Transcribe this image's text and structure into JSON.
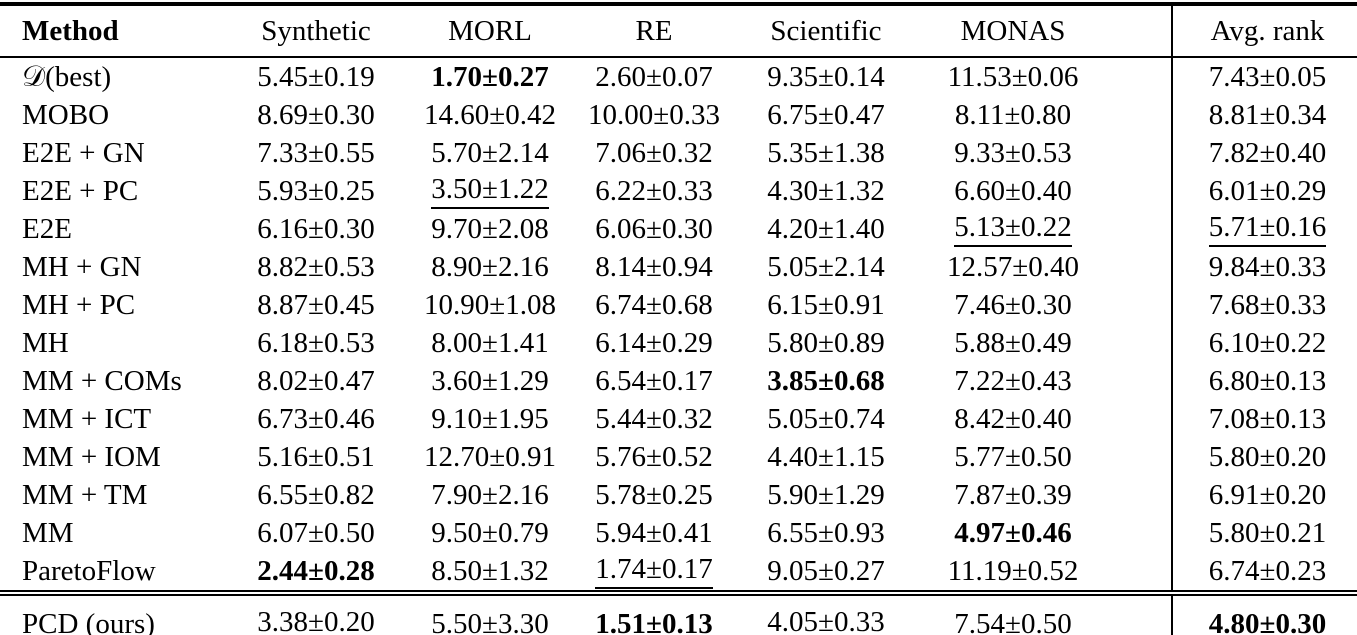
{
  "colors": {
    "background": "#ffffff",
    "text": "#000000",
    "rules": "#000000"
  },
  "table": {
    "columns": [
      "Method",
      "Synthetic",
      "MORL",
      "RE",
      "Scientific",
      "MONAS",
      "Avg. rank"
    ],
    "body_rows": [
      {
        "label": "𝒟(best)",
        "values": [
          {
            "t": "5.45±0.19"
          },
          {
            "t": "1.70±0.27",
            "s": "b"
          },
          {
            "t": "2.60±0.07"
          },
          {
            "t": "9.35±0.14"
          },
          {
            "t": "11.53±0.06"
          },
          {
            "t": "7.43±0.05"
          }
        ]
      },
      {
        "label": "MOBO",
        "values": [
          {
            "t": "8.69±0.30"
          },
          {
            "t": "14.60±0.42"
          },
          {
            "t": "10.00±0.33"
          },
          {
            "t": "6.75±0.47"
          },
          {
            "t": "8.11±0.80"
          },
          {
            "t": "8.81±0.34"
          }
        ]
      },
      {
        "label": "E2E + GN",
        "values": [
          {
            "t": "7.33±0.55"
          },
          {
            "t": "5.70±2.14"
          },
          {
            "t": "7.06±0.32"
          },
          {
            "t": "5.35±1.38"
          },
          {
            "t": "9.33±0.53"
          },
          {
            "t": "7.82±0.40"
          }
        ]
      },
      {
        "label": "E2E + PC",
        "values": [
          {
            "t": "5.93±0.25"
          },
          {
            "t": "3.50±1.22",
            "s": "u"
          },
          {
            "t": "6.22±0.33"
          },
          {
            "t": "4.30±1.32"
          },
          {
            "t": "6.60±0.40"
          },
          {
            "t": "6.01±0.29"
          }
        ]
      },
      {
        "label": "E2E",
        "values": [
          {
            "t": "6.16±0.30"
          },
          {
            "t": "9.70±2.08"
          },
          {
            "t": "6.06±0.30"
          },
          {
            "t": "4.20±1.40"
          },
          {
            "t": "5.13±0.22",
            "s": "u"
          },
          {
            "t": "5.71±0.16",
            "s": "u"
          }
        ]
      },
      {
        "label": "MH + GN",
        "values": [
          {
            "t": "8.82±0.53"
          },
          {
            "t": "8.90±2.16"
          },
          {
            "t": "8.14±0.94"
          },
          {
            "t": "5.05±2.14"
          },
          {
            "t": "12.57±0.40"
          },
          {
            "t": "9.84±0.33"
          }
        ]
      },
      {
        "label": "MH + PC",
        "values": [
          {
            "t": "8.87±0.45"
          },
          {
            "t": "10.90±1.08"
          },
          {
            "t": "6.74±0.68"
          },
          {
            "t": "6.15±0.91"
          },
          {
            "t": "7.46±0.30"
          },
          {
            "t": "7.68±0.33"
          }
        ]
      },
      {
        "label": "MH",
        "values": [
          {
            "t": "6.18±0.53"
          },
          {
            "t": "8.00±1.41"
          },
          {
            "t": "6.14±0.29"
          },
          {
            "t": "5.80±0.89"
          },
          {
            "t": "5.88±0.49"
          },
          {
            "t": "6.10±0.22"
          }
        ]
      },
      {
        "label": "MM + COMs",
        "values": [
          {
            "t": "8.02±0.47"
          },
          {
            "t": "3.60±1.29"
          },
          {
            "t": "6.54±0.17"
          },
          {
            "t": "3.85±0.68",
            "s": "b"
          },
          {
            "t": "7.22±0.43"
          },
          {
            "t": "6.80±0.13"
          }
        ]
      },
      {
        "label": "MM + ICT",
        "values": [
          {
            "t": "6.73±0.46"
          },
          {
            "t": "9.10±1.95"
          },
          {
            "t": "5.44±0.32"
          },
          {
            "t": "5.05±0.74"
          },
          {
            "t": "8.42±0.40"
          },
          {
            "t": "7.08±0.13"
          }
        ]
      },
      {
        "label": "MM + IOM",
        "values": [
          {
            "t": "5.16±0.51"
          },
          {
            "t": "12.70±0.91"
          },
          {
            "t": "5.76±0.52"
          },
          {
            "t": "4.40±1.15"
          },
          {
            "t": "5.77±0.50"
          },
          {
            "t": "5.80±0.20"
          }
        ]
      },
      {
        "label": "MM + TM",
        "values": [
          {
            "t": "6.55±0.82"
          },
          {
            "t": "7.90±2.16"
          },
          {
            "t": "5.78±0.25"
          },
          {
            "t": "5.90±1.29"
          },
          {
            "t": "7.87±0.39"
          },
          {
            "t": "6.91±0.20"
          }
        ]
      },
      {
        "label": "MM",
        "values": [
          {
            "t": "6.07±0.50"
          },
          {
            "t": "9.50±0.79"
          },
          {
            "t": "5.94±0.41"
          },
          {
            "t": "6.55±0.93"
          },
          {
            "t": "4.97±0.46",
            "s": "b"
          },
          {
            "t": "5.80±0.21"
          }
        ]
      },
      {
        "label": "ParetoFlow",
        "values": [
          {
            "t": "2.44±0.28",
            "s": "b"
          },
          {
            "t": "8.50±1.32"
          },
          {
            "t": "1.74±0.17",
            "s": "u"
          },
          {
            "t": "9.05±0.27"
          },
          {
            "t": "11.19±0.52"
          },
          {
            "t": "6.74±0.23"
          }
        ]
      }
    ],
    "footer_rows": [
      {
        "label": "PCD (ours)",
        "values": [
          {
            "t": "3.38±0.20",
            "s": "u"
          },
          {
            "t": "5.50±3.30"
          },
          {
            "t": "1.51±0.13",
            "s": "b"
          },
          {
            "t": "4.05±0.33",
            "s": "u"
          },
          {
            "t": "7.54±0.50"
          },
          {
            "t": "4.80±0.30",
            "s": "b"
          }
        ]
      }
    ]
  },
  "chart_data": {
    "type": "table",
    "columns": [
      "Method",
      "Synthetic",
      "MORL",
      "RE",
      "Scientific",
      "MONAS",
      "Avg. rank"
    ],
    "rows": [
      [
        "𝒟(best)",
        "5.45±0.19",
        "1.70±0.27",
        "2.60±0.07",
        "9.35±0.14",
        "11.53±0.06",
        "7.43±0.05"
      ],
      [
        "MOBO",
        "8.69±0.30",
        "14.60±0.42",
        "10.00±0.33",
        "6.75±0.47",
        "8.11±0.80",
        "8.81±0.34"
      ],
      [
        "E2E + GN",
        "7.33±0.55",
        "5.70±2.14",
        "7.06±0.32",
        "5.35±1.38",
        "9.33±0.53",
        "7.82±0.40"
      ],
      [
        "E2E + PC",
        "5.93±0.25",
        "3.50±1.22",
        "6.22±0.33",
        "4.30±1.32",
        "6.60±0.40",
        "6.01±0.29"
      ],
      [
        "E2E",
        "6.16±0.30",
        "9.70±2.08",
        "6.06±0.30",
        "4.20±1.40",
        "5.13±0.22",
        "5.71±0.16"
      ],
      [
        "MH + GN",
        "8.82±0.53",
        "8.90±2.16",
        "8.14±0.94",
        "5.05±2.14",
        "12.57±0.40",
        "9.84±0.33"
      ],
      [
        "MH + PC",
        "8.87±0.45",
        "10.90±1.08",
        "6.74±0.68",
        "6.15±0.91",
        "7.46±0.30",
        "7.68±0.33"
      ],
      [
        "MH",
        "6.18±0.53",
        "8.00±1.41",
        "6.14±0.29",
        "5.80±0.89",
        "5.88±0.49",
        "6.10±0.22"
      ],
      [
        "MM + COMs",
        "8.02±0.47",
        "3.60±1.29",
        "6.54±0.17",
        "3.85±0.68",
        "7.22±0.43",
        "6.80±0.13"
      ],
      [
        "MM + ICT",
        "6.73±0.46",
        "9.10±1.95",
        "5.44±0.32",
        "5.05±0.74",
        "8.42±0.40",
        "7.08±0.13"
      ],
      [
        "MM + IOM",
        "5.16±0.51",
        "12.70±0.91",
        "5.76±0.52",
        "4.40±1.15",
        "5.77±0.50",
        "5.80±0.20"
      ],
      [
        "MM + TM",
        "6.55±0.82",
        "7.90±2.16",
        "5.78±0.25",
        "5.90±1.29",
        "7.87±0.39",
        "6.91±0.20"
      ],
      [
        "MM",
        "6.07±0.50",
        "9.50±0.79",
        "5.94±0.41",
        "6.55±0.93",
        "4.97±0.46",
        "5.80±0.21"
      ],
      [
        "ParetoFlow",
        "2.44±0.28",
        "8.50±1.32",
        "1.74±0.17",
        "9.05±0.27",
        "11.19±0.52",
        "6.74±0.23"
      ],
      [
        "PCD (ours)",
        "3.38±0.20",
        "5.50±3.30",
        "1.51±0.13",
        "4.05±0.33",
        "7.54±0.50",
        "4.80±0.30"
      ]
    ],
    "bold_cells": [
      [
        "𝒟(best)",
        "MORL"
      ],
      [
        "MM + COMs",
        "Scientific"
      ],
      [
        "MM",
        "MONAS"
      ],
      [
        "ParetoFlow",
        "Synthetic"
      ],
      [
        "PCD (ours)",
        "RE"
      ],
      [
        "PCD (ours)",
        "Avg. rank"
      ]
    ],
    "underlined_cells": [
      [
        "E2E + PC",
        "MORL"
      ],
      [
        "E2E",
        "MONAS"
      ],
      [
        "E2E",
        "Avg. rank"
      ],
      [
        "ParetoFlow",
        "RE"
      ],
      [
        "PCD (ours)",
        "Synthetic"
      ],
      [
        "PCD (ours)",
        "Scientific"
      ]
    ]
  }
}
